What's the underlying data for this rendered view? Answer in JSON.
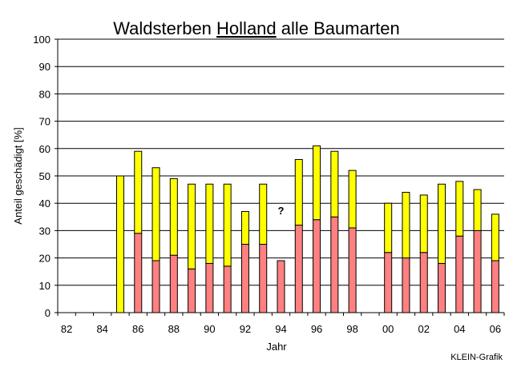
{
  "chart_data": {
    "type": "bar",
    "stacked": true,
    "title_parts": {
      "prefix": "Waldsterben ",
      "emph": "Holland",
      "suffix": " alle Baumarten"
    },
    "xlabel": "Jahr",
    "ylabel": "Anteil geschädigt [%]",
    "ylim": [
      0,
      100
    ],
    "yticks": [
      0,
      10,
      20,
      30,
      40,
      50,
      60,
      70,
      80,
      90,
      100
    ],
    "x_tick_labels": [
      "82",
      "84",
      "86",
      "88",
      "90",
      "92",
      "94",
      "96",
      "98",
      "00",
      "02",
      "04",
      "06"
    ],
    "categories": [
      "82",
      "83",
      "84",
      "85",
      "86",
      "87",
      "88",
      "89",
      "90",
      "91",
      "92",
      "93",
      "94",
      "95",
      "96",
      "97",
      "98",
      "99",
      "00",
      "01",
      "02",
      "03",
      "04",
      "05",
      "06"
    ],
    "grid": true,
    "colors": {
      "lower": "#ff8080",
      "upper": "#ffff00",
      "plot_bg": "#ffffff",
      "axis": "#000000"
    },
    "series": [
      {
        "values": [
          null,
          null,
          null,
          0,
          29,
          19,
          21,
          16,
          18,
          17,
          25,
          25,
          19,
          32,
          34,
          35,
          31,
          null,
          22,
          20,
          22,
          18,
          28,
          30,
          19
        ]
      },
      {
        "values": [
          null,
          null,
          null,
          50,
          30,
          34,
          28,
          31,
          29,
          30,
          12,
          22,
          null,
          24,
          27,
          24,
          21,
          null,
          18,
          24,
          21,
          29,
          20,
          15,
          17
        ]
      }
    ],
    "annotations": [
      {
        "text": "?",
        "x": "94",
        "y": 36
      }
    ]
  },
  "footer": {
    "credit": "KLEIN-Grafik"
  }
}
